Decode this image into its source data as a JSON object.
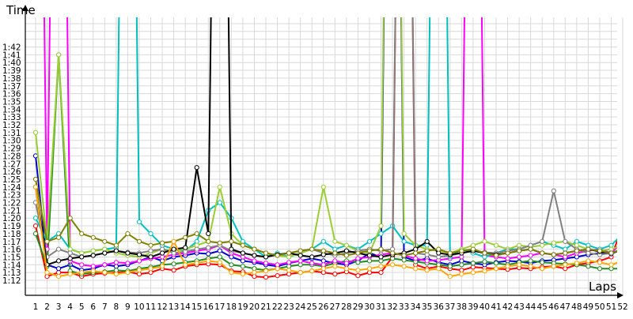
{
  "chart_data": {
    "type": "line",
    "title": "",
    "xlabel": "Laps",
    "ylabel": "Time",
    "xlim": [
      1,
      52
    ],
    "ylim_seconds": [
      71,
      103
    ],
    "grid": true,
    "legend": "none",
    "x": [
      1,
      2,
      3,
      4,
      5,
      6,
      7,
      8,
      9,
      10,
      11,
      12,
      13,
      14,
      15,
      16,
      17,
      18,
      19,
      20,
      21,
      22,
      23,
      24,
      25,
      26,
      27,
      28,
      29,
      30,
      31,
      32,
      33,
      34,
      35,
      36,
      37,
      38,
      39,
      40,
      41,
      42,
      43,
      44,
      45,
      46,
      47,
      48,
      49,
      50,
      51,
      52
    ],
    "x_tick_labels": [
      "1",
      "2",
      "3",
      "4",
      "5",
      "6",
      "7",
      "8",
      "9",
      "10",
      "11",
      "12",
      "13",
      "14",
      "15",
      "16",
      "17",
      "18",
      "19",
      "20",
      "21",
      "22",
      "23",
      "24",
      "25",
      "26",
      "27",
      "28",
      "29",
      "30",
      "31",
      "32",
      "33",
      "34",
      "35",
      "36",
      "37",
      "38",
      "39",
      "40",
      "41",
      "42",
      "43",
      "44",
      "45",
      "46",
      "47",
      "48",
      "49",
      "50",
      "51",
      "52"
    ],
    "y_tick_labels": [
      "1:12",
      "1:13",
      "1:14",
      "1:15",
      "1:16",
      "1:17",
      "1:18",
      "1:19",
      "1:20",
      "1:21",
      "1:22",
      "1:23",
      "1:24",
      "1:25",
      "1:26",
      "1:27",
      "1:28",
      "1:29",
      "1:30",
      "1:31",
      "1:32",
      "1:33",
      "1:34",
      "1:35",
      "1:36",
      "1:37",
      "1:38",
      "1:39",
      "1:40",
      "1:41",
      "1:42"
    ],
    "series": [
      {
        "color": "#ff0000",
        "values": [
          79,
          72.5,
          73,
          73,
          72.5,
          72.8,
          72.9,
          73,
          73.1,
          72.8,
          73,
          73.5,
          73.3,
          73.8,
          74,
          74.1,
          74,
          73.2,
          73.1,
          72.5,
          72.4,
          72.6,
          72.8,
          73,
          73.2,
          73,
          72.8,
          73.1,
          72.6,
          73,
          73,
          75,
          200,
          74,
          73.5,
          73.8,
          73.5,
          73.3,
          73.7,
          73.6,
          73.5,
          73.4,
          73.6,
          73.5,
          73.7,
          73.8,
          73.5,
          74,
          74.2,
          74.5,
          75,
          79
        ]
      },
      {
        "color": "#0000cc",
        "values": [
          88,
          74,
          73.5,
          74,
          73.3,
          73.5,
          74,
          73.8,
          74,
          74.5,
          75,
          74.5,
          75,
          75.2,
          75.5,
          75.4,
          75.8,
          75,
          74.5,
          74.3,
          74,
          73.8,
          74.2,
          74.5,
          74.8,
          74.5,
          74.2,
          74,
          74.5,
          75.5,
          75,
          200,
          75,
          74.5,
          74.8,
          74.3,
          74,
          74.5,
          74.2,
          74,
          74.3,
          74.5,
          74.4,
          74.2,
          74.5,
          74.6,
          74.8,
          75,
          75.3,
          75.5,
          75.4,
          76
        ]
      },
      {
        "color": "#228b22",
        "values": [
          78,
          73.8,
          101,
          73.2,
          72.8,
          73,
          73.1,
          73.3,
          73.2,
          73.5,
          73.7,
          74,
          74.1,
          74.3,
          74.5,
          74.8,
          75,
          74,
          73.8,
          73.5,
          73.3,
          73.5,
          73.8,
          74,
          74,
          73.8,
          74.2,
          74.5,
          74.3,
          74.5,
          74.5,
          74.8,
          74.6,
          74.4,
          74.2,
          74,
          73.8,
          74,
          74.2,
          74.4,
          74.2,
          74,
          74.3,
          74.5,
          74.3,
          74.2,
          74.1,
          74,
          73.8,
          73.5,
          73.5,
          73.5
        ]
      },
      {
        "color": "#ff00ff",
        "values": [
          200,
          76,
          200,
          74.5,
          74,
          73.8,
          74,
          74.3,
          74.2,
          74.5,
          74.8,
          75,
          75.3,
          75.5,
          75.8,
          76,
          76.5,
          75.5,
          75,
          74.5,
          74.2,
          74,
          74.3,
          74.5,
          74.2,
          74,
          74.5,
          74.2,
          74.8,
          75,
          75.3,
          75.5,
          75.2,
          74.8,
          74.5,
          74.6,
          74.8,
          75,
          200,
          75.2,
          75,
          74.8,
          75,
          75.2,
          75.5,
          75.3,
          75,
          75.5,
          75.8,
          76,
          75.5,
          77
        ]
      },
      {
        "color": "#00bfbf",
        "values": [
          80,
          77,
          78,
          76,
          75.5,
          75.8,
          76,
          76.2,
          200,
          79.5,
          78,
          76.5,
          76,
          75.8,
          77,
          81,
          82,
          80,
          77,
          76,
          75,
          75.5,
          75,
          75.5,
          76,
          77,
          76,
          76.5,
          76,
          77,
          78,
          79,
          77,
          76.5,
          76.5,
          200,
          75,
          76,
          75.5,
          75,
          75.5,
          76,
          76,
          76.5,
          77,
          76.5,
          76,
          77,
          76.5,
          76,
          76.5,
          78
        ]
      },
      {
        "color": "#9acd32",
        "values": [
          91,
          77,
          101,
          76,
          75.5,
          75.8,
          76,
          75.5,
          75.2,
          75,
          75.5,
          76,
          75.8,
          76,
          76.5,
          77,
          84,
          78,
          76.5,
          76,
          75.5,
          75.2,
          75,
          75.5,
          76,
          84,
          77,
          76.5,
          75.8,
          75.5,
          79,
          200,
          78,
          76.5,
          76,
          75.8,
          75.5,
          76,
          76.5,
          77,
          76.5,
          76,
          76.5,
          76.3,
          76.5,
          76.8,
          77,
          76.5,
          76,
          75.8,
          76,
          76.5
        ]
      },
      {
        "color": "#808080",
        "values": [
          82,
          75,
          76,
          75.5,
          75,
          75.2,
          75.5,
          75.8,
          75.6,
          75.5,
          75.8,
          76,
          75.5,
          75.7,
          76,
          76.2,
          76.5,
          75.8,
          75.5,
          75.2,
          75,
          75.3,
          75.5,
          75.8,
          76,
          75.5,
          75.2,
          75.5,
          75.8,
          76,
          75.8,
          76,
          200,
          75.5,
          75.3,
          75,
          75.2,
          75.5,
          75.8,
          75.6,
          75.5,
          75.8,
          76,
          76.5,
          77,
          83.5,
          77,
          76,
          75.5,
          75.3,
          75.5,
          76
        ]
      },
      {
        "color": "#000000",
        "values": [
          84,
          74,
          74.5,
          74.8,
          75,
          75.2,
          75.5,
          75.8,
          75.5,
          75.3,
          75,
          75.5,
          76,
          76.2,
          86.5,
          78,
          200,
          76,
          75.5,
          75.2,
          75,
          75.3,
          75.5,
          75.2,
          75,
          75.3,
          75.5,
          75.8,
          75.5,
          75.2,
          75,
          75.3,
          75.5,
          76,
          77,
          75.5,
          75.3,
          75.5,
          75.8,
          75.5,
          75.3,
          75.5,
          75.8,
          76,
          75.5,
          75.3,
          75.5,
          75.8,
          76,
          75.7,
          75.5,
          76
        ]
      },
      {
        "color": "#808000",
        "values": [
          85,
          77,
          77.5,
          80,
          78,
          77.5,
          77,
          76.5,
          78,
          77,
          76.5,
          76.8,
          77,
          77.5,
          78,
          77,
          76.8,
          77,
          76.5,
          76,
          75.5,
          75.2,
          75.5,
          75.8,
          76,
          75.8,
          75.5,
          75.2,
          75.5,
          75.8,
          76,
          75.5,
          75.2,
          75.5,
          75.8,
          76,
          75.5,
          75.8,
          76,
          75.5,
          75.2,
          75.5,
          75.8,
          76,
          75.5,
          75.3,
          75.5,
          75.8,
          76,
          75.8,
          75.5,
          76
        ]
      },
      {
        "color": "#ffa500",
        "values": [
          84,
          73,
          72.5,
          72.8,
          73,
          73.2,
          73,
          72.8,
          73,
          73.3,
          73.5,
          73.8,
          77,
          74,
          74.2,
          74.5,
          74.3,
          73,
          72.8,
          73,
          73.2,
          73.5,
          73.3,
          73,
          73.2,
          73.5,
          73.8,
          73.5,
          73.3,
          73.5,
          73.8,
          74,
          73.8,
          73.5,
          73.3,
          73.5,
          72.5,
          72.8,
          73,
          73.2,
          73.5,
          73.8,
          74,
          73.8,
          73.5,
          73.8,
          74,
          74.2,
          74.5,
          74.3,
          74,
          74.5
        ]
      }
    ]
  }
}
